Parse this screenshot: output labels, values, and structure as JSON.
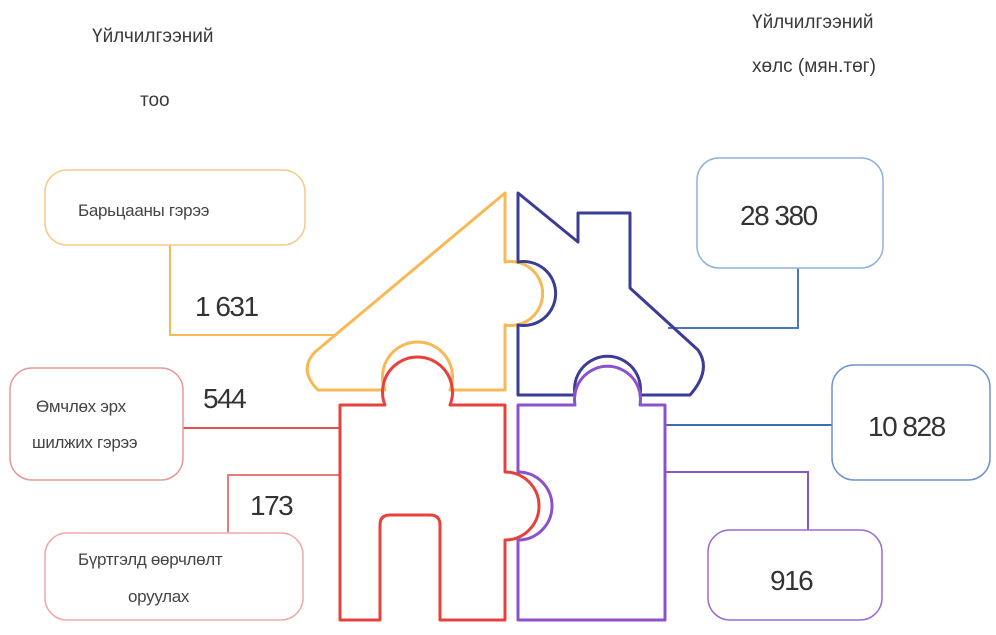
{
  "left_header": [
    "Үйлчилгээний",
    "тоо"
  ],
  "right_header": [
    "Үйлчилгээний",
    "хөлс (мян.төг)"
  ],
  "services": [
    {
      "label": [
        "Барьцааны гэрээ"
      ],
      "count": "1 631",
      "fee": "28 380"
    },
    {
      "label": [
        "Өмчлөх эрх",
        "шилжих гэрээ"
      ],
      "count": "544",
      "fee": "10 828"
    },
    {
      "label": [
        "Бүртгэлд  өөрчлөлт",
        "оруулах"
      ],
      "count": "173",
      "fee": "916"
    }
  ]
}
